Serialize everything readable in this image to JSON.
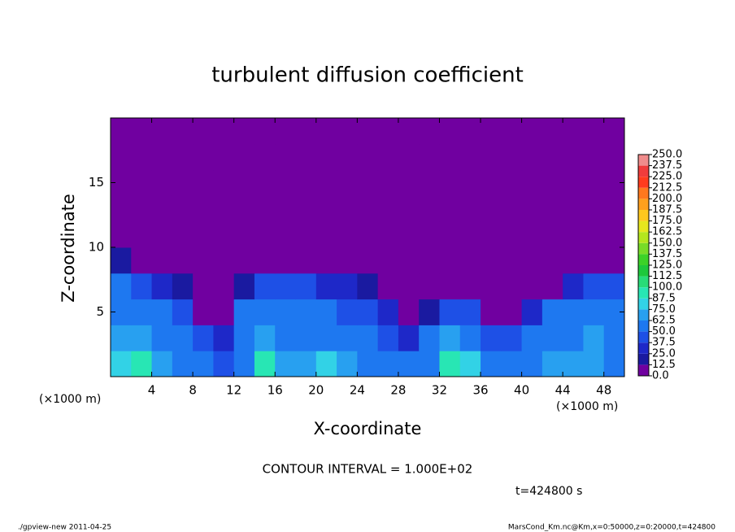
{
  "chart_data": {
    "type": "heatmap",
    "title": "turbulent diffusion coefficient",
    "x_label": "X-coordinate",
    "y_label": "Z-coordinate",
    "x_unit": "(×1000 m)",
    "xlim": [
      0,
      50
    ],
    "ylim": [
      0,
      20
    ],
    "xticks": [
      4,
      8,
      12,
      16,
      20,
      24,
      28,
      32,
      36,
      40,
      44,
      48
    ],
    "yticks": [
      5,
      10,
      15
    ],
    "x": [
      1,
      3,
      5,
      7,
      9,
      11,
      13,
      15,
      17,
      19,
      21,
      23,
      25,
      27,
      29,
      31,
      33,
      35,
      37,
      39,
      41,
      43,
      45,
      47,
      49
    ],
    "y": [
      1,
      3,
      5,
      7,
      9,
      11,
      13,
      15,
      17,
      19
    ],
    "values": [
      [
        80,
        90,
        70,
        60,
        50,
        40,
        60,
        90,
        70,
        70,
        80,
        70,
        60,
        50,
        50,
        60,
        90,
        80,
        60,
        50,
        60,
        70,
        70,
        70,
        60
      ],
      [
        70,
        70,
        60,
        60,
        45,
        30,
        60,
        70,
        60,
        60,
        60,
        60,
        50,
        40,
        30,
        50,
        70,
        60,
        40,
        40,
        50,
        60,
        60,
        70,
        60
      ],
      [
        60,
        55,
        50,
        45,
        10,
        0,
        50,
        55,
        60,
        55,
        50,
        45,
        40,
        30,
        0,
        20,
        40,
        40,
        0,
        10,
        30,
        50,
        55,
        60,
        55
      ],
      [
        50,
        45,
        35,
        15,
        0,
        0,
        20,
        40,
        45,
        40,
        35,
        25,
        15,
        0,
        0,
        0,
        0,
        0,
        0,
        0,
        0,
        10,
        30,
        40,
        40
      ],
      [
        20,
        10,
        0,
        0,
        0,
        0,
        0,
        0,
        10,
        0,
        0,
        0,
        0,
        0,
        0,
        0,
        0,
        0,
        0,
        0,
        0,
        0,
        0,
        0,
        0
      ],
      [
        0,
        0,
        0,
        0,
        0,
        0,
        0,
        0,
        0,
        0,
        0,
        0,
        0,
        0,
        0,
        0,
        0,
        0,
        0,
        0,
        0,
        0,
        0,
        0,
        0
      ],
      [
        0,
        0,
        0,
        0,
        0,
        0,
        0,
        0,
        0,
        0,
        0,
        0,
        0,
        0,
        0,
        0,
        0,
        0,
        0,
        0,
        0,
        0,
        0,
        0,
        0
      ],
      [
        0,
        0,
        0,
        0,
        0,
        0,
        0,
        0,
        0,
        0,
        0,
        0,
        0,
        0,
        0,
        0,
        0,
        0,
        0,
        0,
        0,
        0,
        0,
        0,
        0
      ],
      [
        0,
        0,
        0,
        0,
        0,
        0,
        0,
        0,
        0,
        0,
        0,
        0,
        0,
        0,
        0,
        0,
        0,
        0,
        0,
        0,
        0,
        0,
        0,
        0,
        0
      ],
      [
        0,
        0,
        0,
        0,
        0,
        0,
        0,
        0,
        0,
        0,
        0,
        0,
        0,
        0,
        0,
        0,
        0,
        0,
        0,
        0,
        0,
        0,
        0,
        0,
        0
      ]
    ],
    "levels": [
      {
        "value": 0,
        "label": "0.0"
      },
      {
        "value": 12.5,
        "label": "12.5"
      },
      {
        "value": 25,
        "label": "25.0"
      },
      {
        "value": 37.5,
        "label": "37.5"
      },
      {
        "value": 50,
        "label": "50.0"
      },
      {
        "value": 62.5,
        "label": "62.5"
      },
      {
        "value": 75,
        "label": "75.0"
      },
      {
        "value": 87.5,
        "label": "87.5"
      },
      {
        "value": 100,
        "label": "100.0"
      },
      {
        "value": 112.5,
        "label": "112.5"
      },
      {
        "value": 125,
        "label": "125.0"
      },
      {
        "value": 137.5,
        "label": "137.5"
      },
      {
        "value": 150,
        "label": "150.0"
      },
      {
        "value": 162.5,
        "label": "162.5"
      },
      {
        "value": 175,
        "label": "175.0"
      },
      {
        "value": 187.5,
        "label": "187.5"
      },
      {
        "value": 200,
        "label": "200.0"
      },
      {
        "value": 212.5,
        "label": "212.5"
      },
      {
        "value": 225,
        "label": "225.0"
      },
      {
        "value": 237.5,
        "label": "237.5"
      },
      {
        "value": 250,
        "label": "250.0"
      }
    ],
    "colors": [
      "#7000a0",
      "#1a1aa0",
      "#1e28c8",
      "#1e50e6",
      "#1e78f0",
      "#28a0f0",
      "#32d2e6",
      "#28e6b4",
      "#28dc78",
      "#1ec83c",
      "#3cd228",
      "#78dc28",
      "#b4e61e",
      "#e6e61e",
      "#ffc81e",
      "#ffa01e",
      "#ff781e",
      "#ff3c1e",
      "#f03c3c",
      "#f08c8c"
    ],
    "annotation": "CONTOUR INTERVAL = 1.000E+02",
    "time_label": "t=424800 s",
    "footer_left": "./gpview-new  2011-04-25",
    "footer_right": "MarsCond_Km.nc@Km,x=0:50000,z=0:20000,t=424800"
  }
}
